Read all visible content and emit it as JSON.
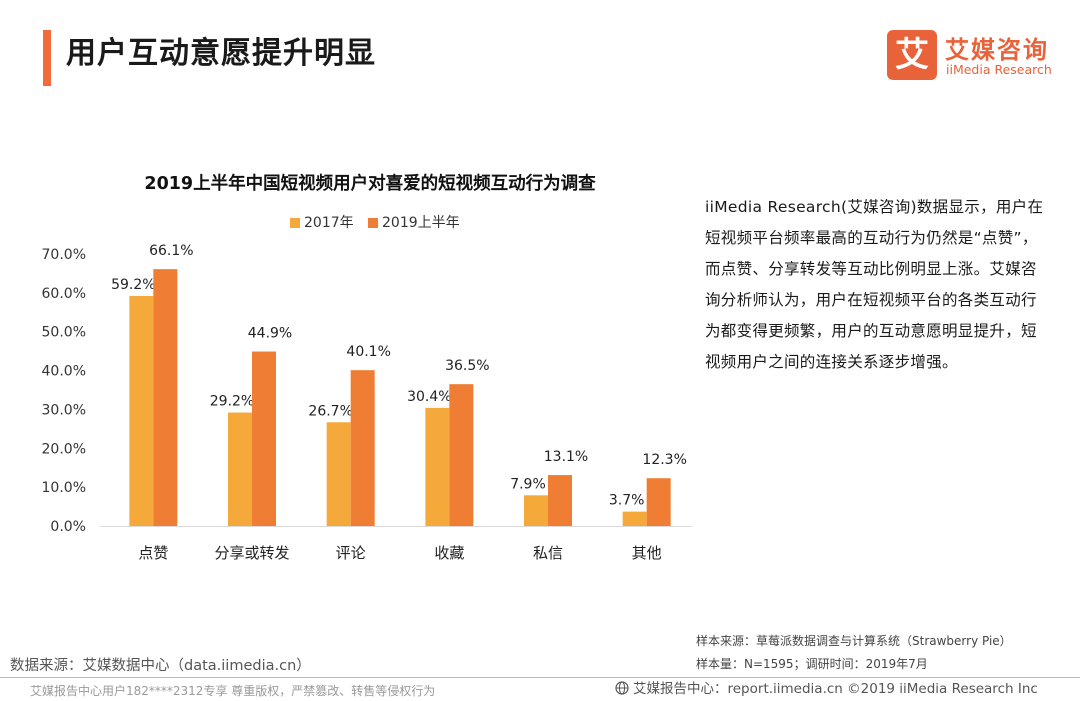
{
  "header": {
    "title": "用户互动意愿提升明显",
    "accent_color": "#f26b3a"
  },
  "logo": {
    "mark": "艾",
    "cn": "艾媒咨询",
    "en": "iiMedia Research",
    "color": "#e8623a"
  },
  "chart_data": {
    "type": "bar",
    "title": "2019上半年中国短视频用户对喜爱的短视频互动行为调查",
    "categories": [
      "点赞",
      "分享或转发",
      "评论",
      "收藏",
      "私信",
      "其他"
    ],
    "series": [
      {
        "name": "2017年",
        "values": [
          59.2,
          29.2,
          26.7,
          30.4,
          7.9,
          3.7
        ],
        "color": "#f5a93b"
      },
      {
        "name": "2019上半年",
        "values": [
          66.1,
          44.9,
          40.1,
          36.5,
          13.1,
          12.3
        ],
        "color": "#ef7d33"
      }
    ],
    "y_ticks": [
      "0.0%",
      "10.0%",
      "20.0%",
      "30.0%",
      "40.0%",
      "50.0%",
      "60.0%",
      "70.0%"
    ],
    "ylim": [
      0,
      70
    ],
    "legend_position": "top-center",
    "grid": false
  },
  "description": "iiMedia Research(艾媒咨询)数据显示，用户在短视频平台频率最高的互动行为仍然是“点赞”，而点赞、分享转发等互动比例明显上涨。艾媒咨询分析师认为，用户在短视频平台的各类互动行为都变得更频繁，用户的互动意愿明显提升，短视频用户之间的连接关系逐步增强。",
  "footer": {
    "data_source": "数据来源：艾媒数据中心（data.iimedia.cn）",
    "sample_source": "样本来源：草莓派数据调查与计算系统（Strawberry Pie）",
    "sample_size": "样本量：N=1595；调研时间：2019年7月",
    "watermark": "艾媒报告中心用户182****2312专享 尊重版权，严禁篡改、转售等侵权行为",
    "report_center": "艾媒报告中心：report.iimedia.cn  ©2019  iiMedia Research  Inc",
    "globe_icon": "globe-icon"
  }
}
